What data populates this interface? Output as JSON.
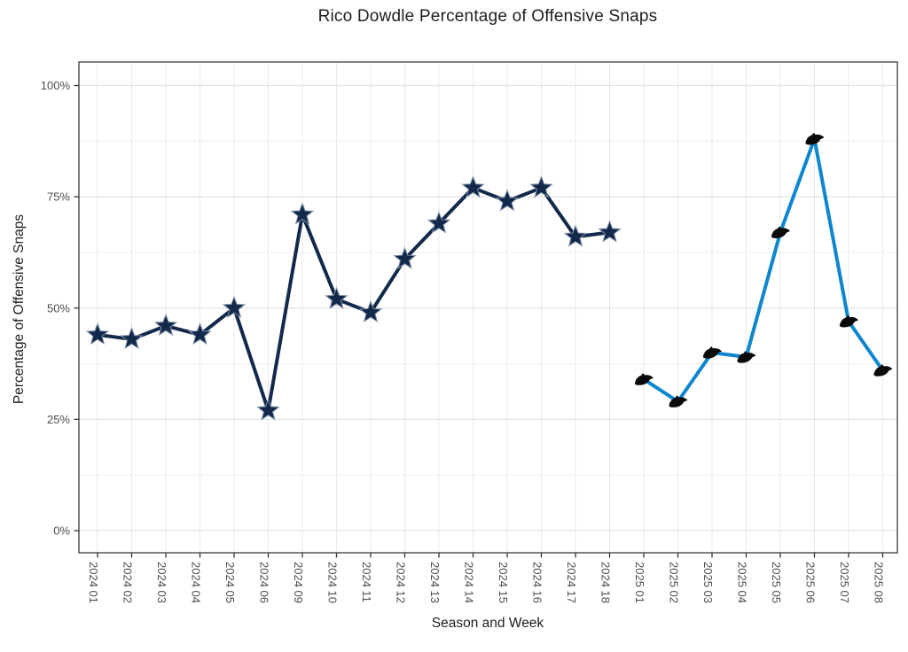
{
  "chart_data": {
    "type": "line",
    "title": "Rico Dowdle Percentage of Offensive Snaps",
    "xlabel": "Season and Week",
    "ylabel": "Percentage of Offensive Snaps",
    "grid": true,
    "legend_position": "none",
    "y_axis": {
      "ticks": [
        0,
        25,
        50,
        75,
        100
      ],
      "tick_labels": [
        "0%",
        "25%",
        "50%",
        "75%",
        "100%"
      ],
      "minor_ticks": [
        12.5,
        37.5,
        62.5,
        87.5
      ],
      "ylim": [
        -5,
        105
      ]
    },
    "categories": [
      "2024 01",
      "2024 02",
      "2024 03",
      "2024 04",
      "2024 05",
      "2024 06",
      "2024 09",
      "2024 10",
      "2024 11",
      "2024 12",
      "2024 13",
      "2024 14",
      "2024 15",
      "2024 16",
      "2024 17",
      "2024 18",
      "2025 01",
      "2025 02",
      "2025 03",
      "2025 04",
      "2025 05",
      "2025 06",
      "2025 07",
      "2025 08"
    ],
    "series": [
      {
        "name": "2024",
        "line_color": "#13294B",
        "marker": "cowboys-star",
        "marker_color": "#13294B",
        "start_category_index": 0,
        "values": [
          44,
          43,
          46,
          44,
          50,
          27,
          71,
          52,
          49,
          61,
          69,
          77,
          74,
          77,
          66,
          67
        ]
      },
      {
        "name": "2025",
        "line_color": "#0E86CE",
        "marker": "panthers-logo",
        "marker_color": "#0A0A0A",
        "start_category_index": 16,
        "values": [
          34,
          29,
          40,
          39,
          67,
          88,
          47,
          36
        ]
      }
    ],
    "colors": {
      "panel_border": "#3a3a3a",
      "major_grid": "#e3e3e3",
      "minor_grid": "#efefef",
      "vertical_grid": "#e8e8e8",
      "tick_label": "#4d4d4d",
      "title_text": "#212121"
    }
  }
}
